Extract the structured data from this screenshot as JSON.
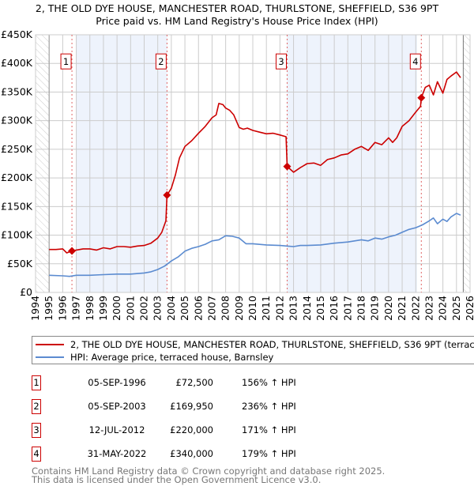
{
  "title": "2, THE OLD DYE HOUSE, MANCHESTER ROAD, THURLSTONE, SHEFFIELD, S36 9PT",
  "subtitle": "Price paid vs. HM Land Registry's House Price Index (HPI)",
  "chart_data": {
    "type": "line",
    "xlim": [
      1994,
      2026
    ],
    "ylim": [
      0,
      450000
    ],
    "y_ticks": [
      0,
      50000,
      100000,
      150000,
      200000,
      250000,
      300000,
      350000,
      400000,
      450000
    ],
    "y_tick_labels": [
      "£0",
      "£50K",
      "£100K",
      "£150K",
      "£200K",
      "£250K",
      "£300K",
      "£350K",
      "£400K",
      "£450K"
    ],
    "x_ticks": [
      "1994",
      "1995",
      "1996",
      "1997",
      "1998",
      "1999",
      "2000",
      "2001",
      "2002",
      "2003",
      "2004",
      "2005",
      "2006",
      "2007",
      "2008",
      "2009",
      "2010",
      "2011",
      "2012",
      "2013",
      "2014",
      "2015",
      "2016",
      "2017",
      "2018",
      "2019",
      "2020",
      "2021",
      "2022",
      "2023",
      "2024",
      "2025",
      "2026"
    ],
    "grid": true,
    "colors": {
      "property": "#cc0000",
      "hpi": "#5b8bd0",
      "band": "#eef3fc"
    },
    "shaded_ranges": [
      [
        1997.0,
        2003.7
      ],
      [
        2012.5,
        2022.1
      ]
    ],
    "hatched_ranges": [
      [
        1994,
        1995
      ],
      [
        2025.5,
        2026
      ]
    ],
    "series": [
      {
        "name": "2, THE OLD DYE HOUSE, MANCHESTER ROAD, THURLSTONE, SHEFFIELD, S36 9PT (terraced house)",
        "x": [
          1995,
          1995.5,
          1996,
          1996.3,
          1996.68,
          1997,
          1997.5,
          1998,
          1998.5,
          1999,
          1999.5,
          2000,
          2000.5,
          2001,
          2001.5,
          2002,
          2002.5,
          2003,
          2003.3,
          2003.6,
          2003.68,
          2004,
          2004.3,
          2004.6,
          2005,
          2005.5,
          2006,
          2006.5,
          2007,
          2007.3,
          2007.5,
          2007.8,
          2008,
          2008.3,
          2008.6,
          2009,
          2009.3,
          2009.6,
          2010,
          2010.5,
          2011,
          2011.5,
          2012,
          2012.45,
          2012.53,
          2013,
          2013.5,
          2014,
          2014.5,
          2015,
          2015.5,
          2016,
          2016.5,
          2017,
          2017.5,
          2018,
          2018.5,
          2019,
          2019.5,
          2020,
          2020.3,
          2020.6,
          2021,
          2021.5,
          2022,
          2022.35,
          2022.41,
          2022.7,
          2023,
          2023.3,
          2023.6,
          2024,
          2024.3,
          2024.6,
          2025,
          2025.3
        ],
        "values": [
          75000,
          75000,
          76000,
          69000,
          72500,
          74000,
          76000,
          76000,
          74000,
          78000,
          76000,
          80000,
          80000,
          79000,
          81000,
          82000,
          86000,
          95000,
          105000,
          125000,
          169950,
          182000,
          205000,
          235000,
          255000,
          265000,
          278000,
          290000,
          305000,
          310000,
          330000,
          328000,
          322000,
          318000,
          310000,
          288000,
          285000,
          287000,
          283000,
          280000,
          277000,
          278000,
          275000,
          272000,
          220000,
          210000,
          218000,
          225000,
          226000,
          222000,
          232000,
          235000,
          240000,
          242000,
          250000,
          255000,
          248000,
          262000,
          258000,
          270000,
          262000,
          270000,
          290000,
          300000,
          315000,
          325000,
          340000,
          358000,
          362000,
          345000,
          368000,
          348000,
          372000,
          378000,
          385000,
          375000
        ]
      },
      {
        "name": "HPI: Average price, terraced house, Barnsley",
        "x": [
          1995,
          1996,
          1996.5,
          1997,
          1998,
          1999,
          2000,
          2001,
          2002,
          2002.5,
          2003,
          2003.5,
          2004,
          2004.5,
          2005,
          2005.5,
          2006,
          2006.5,
          2007,
          2007.5,
          2008,
          2008.5,
          2009,
          2009.5,
          2010,
          2011,
          2012,
          2012.5,
          2013,
          2013.5,
          2014,
          2015,
          2016,
          2017,
          2018,
          2018.5,
          2019,
          2019.5,
          2020,
          2020.5,
          2021,
          2021.5,
          2022,
          2022.5,
          2023,
          2023.3,
          2023.6,
          2024,
          2024.3,
          2024.6,
          2025,
          2025.3
        ],
        "values": [
          30000,
          29000,
          28000,
          30000,
          30000,
          31000,
          32000,
          32000,
          34000,
          36000,
          40000,
          46000,
          55000,
          62000,
          72000,
          77000,
          80000,
          84000,
          90000,
          92000,
          99000,
          98000,
          95000,
          85000,
          85000,
          83000,
          82000,
          81000,
          80000,
          82000,
          82000,
          83000,
          86000,
          88000,
          92000,
          90000,
          95000,
          93000,
          97000,
          100000,
          105000,
          110000,
          113000,
          118000,
          125000,
          130000,
          120000,
          128000,
          124000,
          132000,
          138000,
          135000
        ]
      }
    ],
    "sales": [
      {
        "label": "1",
        "x": 1996.68,
        "value": 72500
      },
      {
        "label": "2",
        "x": 2003.68,
        "value": 169950
      },
      {
        "label": "3",
        "x": 2012.53,
        "value": 220000
      },
      {
        "label": "4",
        "x": 2022.41,
        "value": 340000
      }
    ]
  },
  "legend": {
    "property": "2, THE OLD DYE HOUSE, MANCHESTER ROAD, THURLSTONE, SHEFFIELD, S36 9PT (terraced house)",
    "hpi": "HPI: Average price, terraced house, Barnsley"
  },
  "table": [
    {
      "num": "1",
      "date": "05-SEP-1996",
      "price": "£72,500",
      "hpi": "156% ↑ HPI"
    },
    {
      "num": "2",
      "date": "05-SEP-2003",
      "price": "£169,950",
      "hpi": "236% ↑ HPI"
    },
    {
      "num": "3",
      "date": "12-JUL-2012",
      "price": "£220,000",
      "hpi": "171% ↑ HPI"
    },
    {
      "num": "4",
      "date": "31-MAY-2022",
      "price": "£340,000",
      "hpi": "179% ↑ HPI"
    }
  ],
  "footer": [
    "Contains HM Land Registry data © Crown copyright and database right 2025.",
    "This data is licensed under the Open Government Licence v3.0."
  ]
}
